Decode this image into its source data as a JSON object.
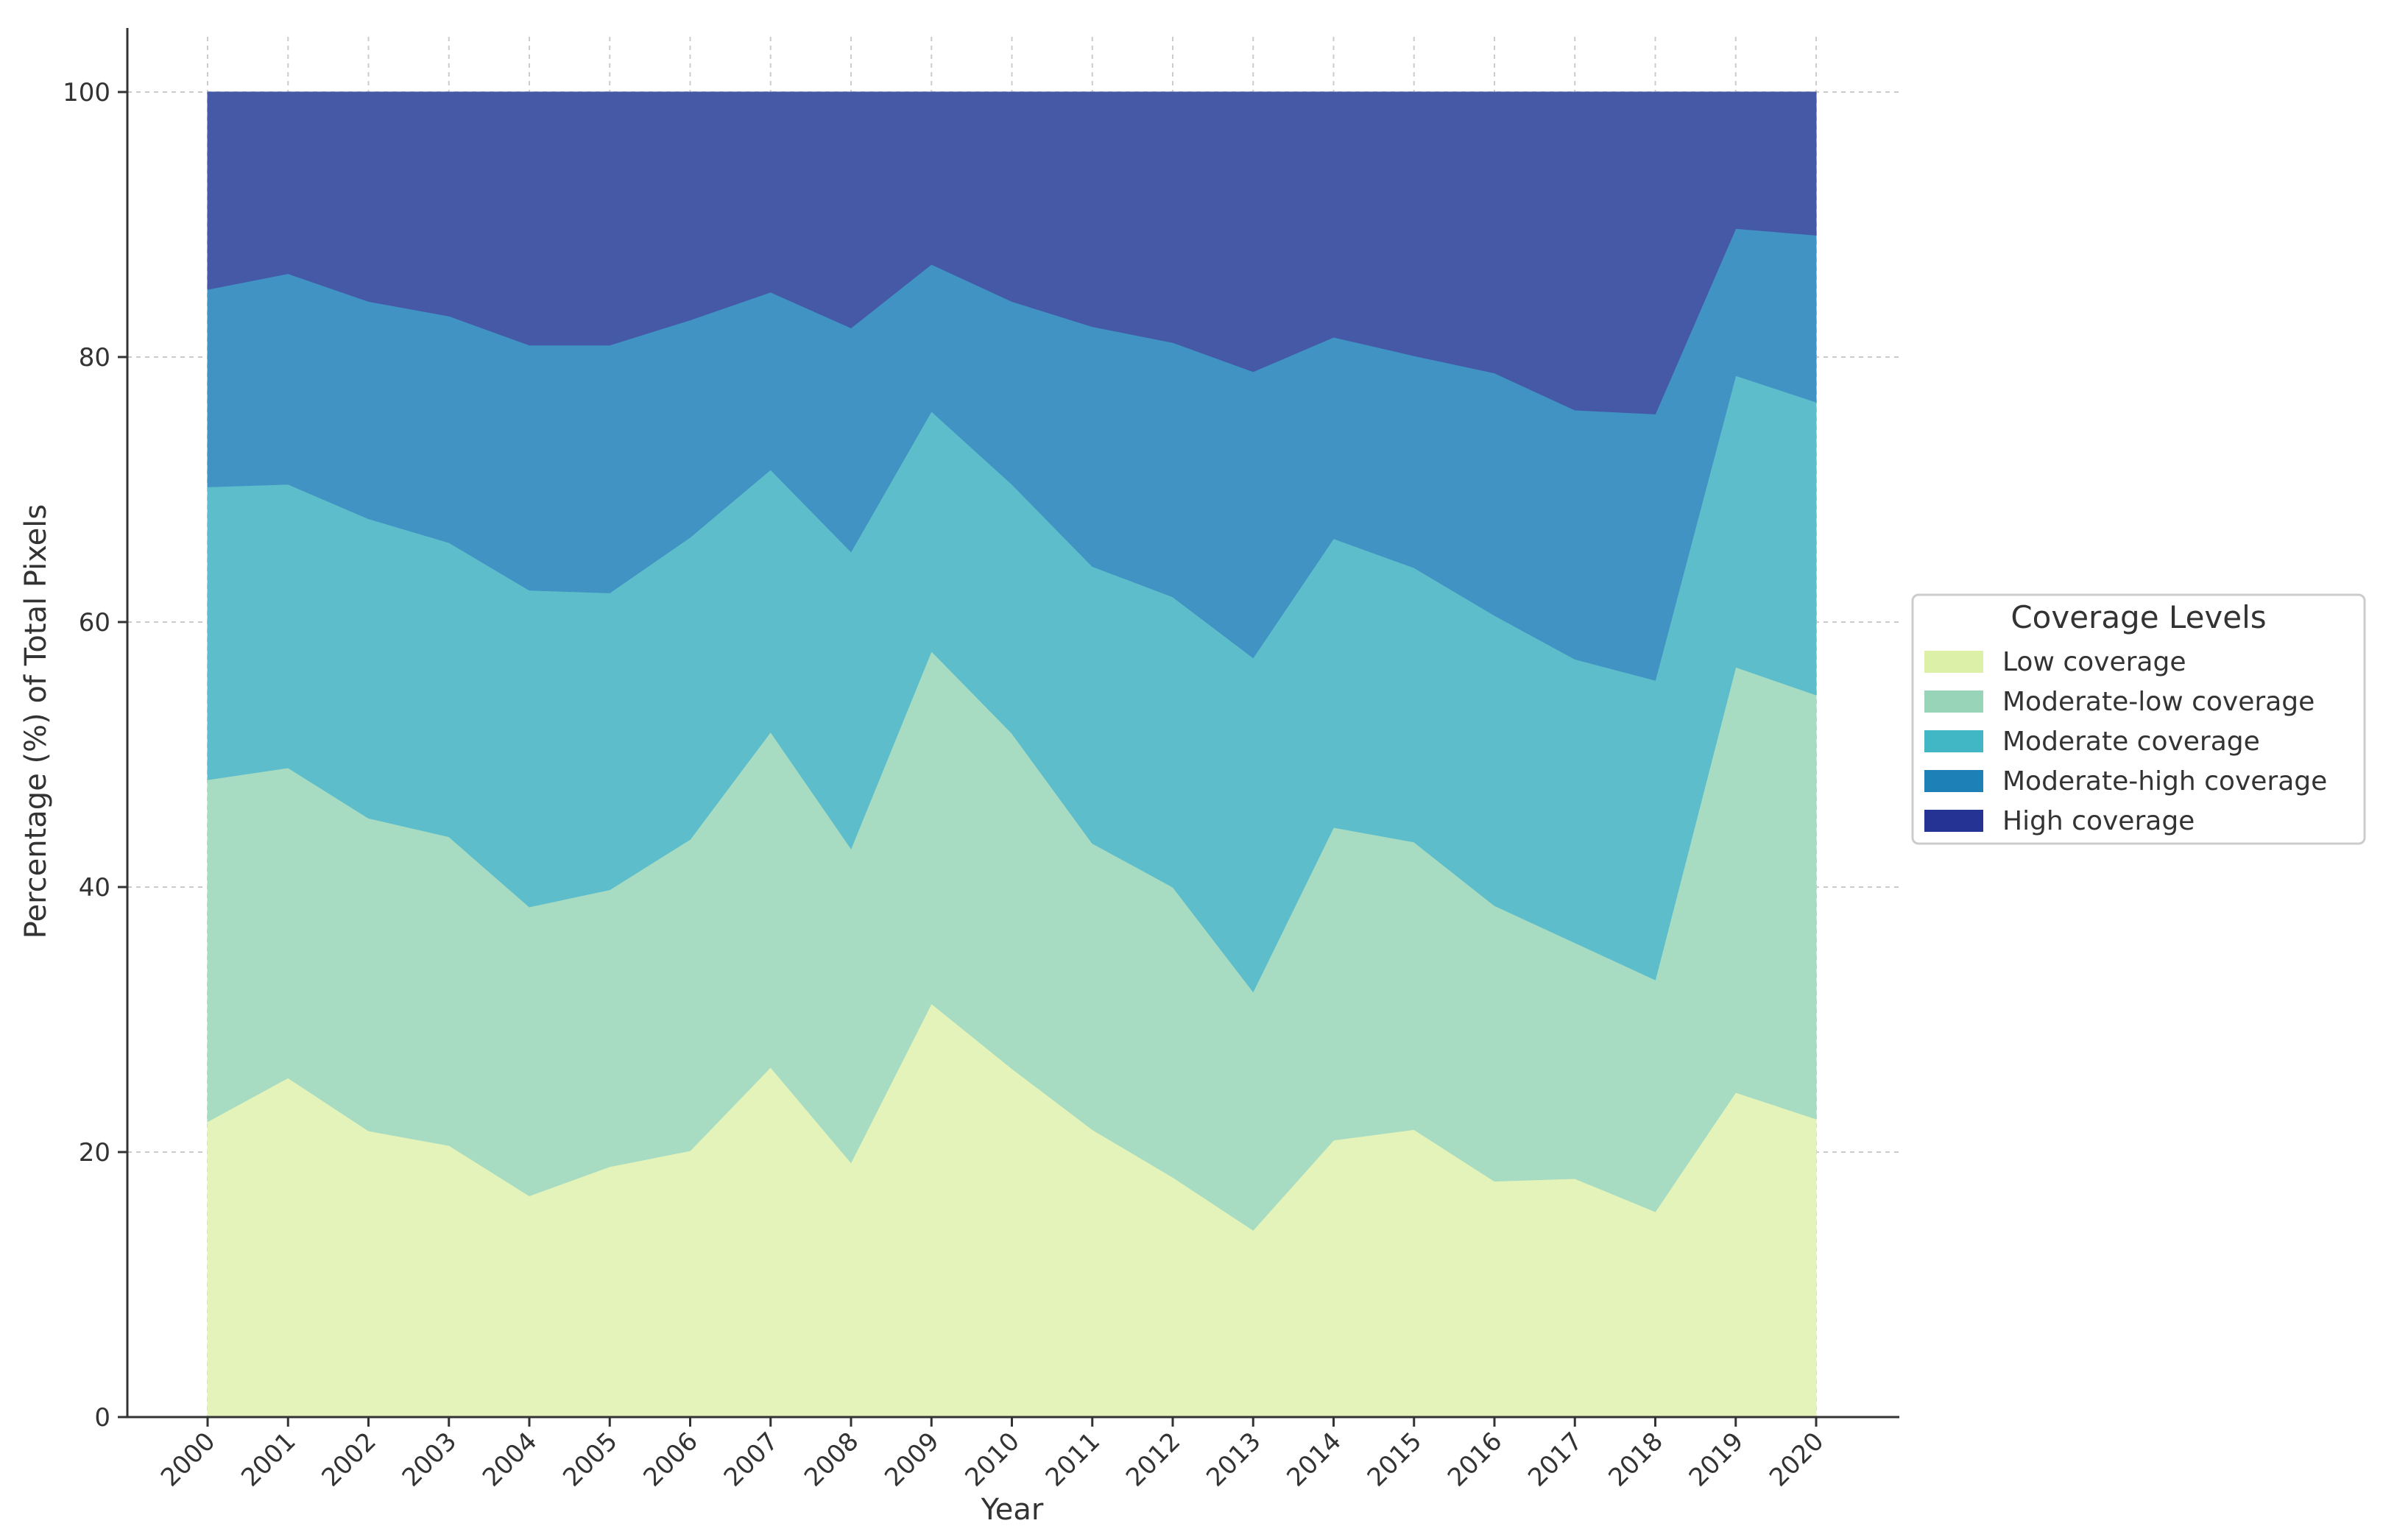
{
  "chart_data": {
    "type": "area",
    "stacked": true,
    "xlabel": "Year",
    "ylabel": "Percentage (%) of Total Pixels",
    "ylim": [
      0,
      100
    ],
    "yticks": [
      "0",
      "20",
      "40",
      "60",
      "80",
      "100"
    ],
    "grid": true,
    "legend": {
      "title": "Coverage Levels",
      "placement": "right"
    },
    "x": [
      "2000",
      "2001",
      "2002",
      "2003",
      "2004",
      "2005",
      "2006",
      "2007",
      "2008",
      "2009",
      "2010",
      "2011",
      "2012",
      "2013",
      "2014",
      "2015",
      "2016",
      "2017",
      "2018",
      "2019",
      "2020"
    ],
    "series": [
      {
        "name": "Low coverage",
        "color": "#e4f3ba",
        "values": [
          22.3,
          25.6,
          21.6,
          20.5,
          16.7,
          18.9,
          20.1,
          26.4,
          19.2,
          31.2,
          26.3,
          21.7,
          18.1,
          14.1,
          20.9,
          21.7,
          17.8,
          18.0,
          15.5,
          24.5,
          22.5
        ]
      },
      {
        "name": "Moderate-low coverage",
        "color": "#a7dcc3",
        "values": [
          25.8,
          23.4,
          23.6,
          23.3,
          21.8,
          20.9,
          23.5,
          25.3,
          23.7,
          26.6,
          25.3,
          21.6,
          21.9,
          18.0,
          23.6,
          21.7,
          20.8,
          17.8,
          17.5,
          32.1,
          32.0
        ]
      },
      {
        "name": "Moderate coverage",
        "color": "#5dbdcb",
        "values": [
          22.1,
          21.4,
          22.6,
          22.2,
          23.9,
          22.4,
          22.8,
          19.8,
          22.4,
          18.1,
          18.8,
          20.9,
          21.9,
          25.2,
          21.8,
          20.7,
          21.9,
          21.4,
          22.6,
          22.0,
          22.1
        ]
      },
      {
        "name": "Moderate-high coverage",
        "color": "#4093c3",
        "values": [
          14.9,
          15.9,
          16.4,
          17.1,
          18.5,
          18.7,
          16.4,
          13.4,
          16.9,
          11.1,
          13.8,
          18.1,
          19.2,
          21.6,
          15.2,
          16.0,
          18.3,
          18.8,
          20.1,
          11.1,
          12.6
        ]
      },
      {
        "name": "High coverage",
        "color": "#4559a7",
        "values": [
          14.9,
          13.7,
          15.8,
          16.9,
          19.1,
          19.1,
          17.2,
          15.1,
          17.8,
          13.0,
          15.8,
          17.7,
          18.9,
          21.1,
          18.5,
          19.9,
          21.2,
          24.0,
          24.3,
          10.3,
          10.8
        ]
      }
    ]
  },
  "legend_swatch_colors": [
    "#dcf0a8",
    "#98d4b8",
    "#41b6c4",
    "#1d80b6",
    "#253494"
  ]
}
